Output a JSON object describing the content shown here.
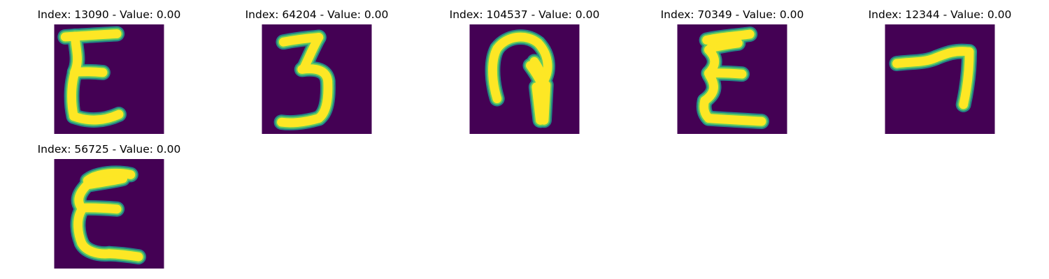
{
  "chart_data": {
    "type": "image-grid",
    "colormap": "viridis",
    "background_color": "#440154",
    "foreground_color": "#fde725",
    "panels": [
      {
        "title": "Index: 13090 - Value: 0.00",
        "index": 13090,
        "value": 0.0,
        "glyph": "E"
      },
      {
        "title": "Index: 64204 - Value: 0.00",
        "index": 64204,
        "value": 0.0,
        "glyph": "3"
      },
      {
        "title": "Index: 104537 - Value: 0.00",
        "index": 104537,
        "value": 0.0,
        "glyph": "hook"
      },
      {
        "title": "Index: 70349 - Value: 0.00",
        "index": 70349,
        "value": 0.0,
        "glyph": "sigma-E"
      },
      {
        "title": "Index: 12344 - Value: 0.00",
        "index": 12344,
        "value": 0.0,
        "glyph": "seven"
      },
      {
        "title": "Index: 56725 - Value: 0.00",
        "index": 56725,
        "value": 0.0,
        "glyph": "E2"
      }
    ]
  }
}
